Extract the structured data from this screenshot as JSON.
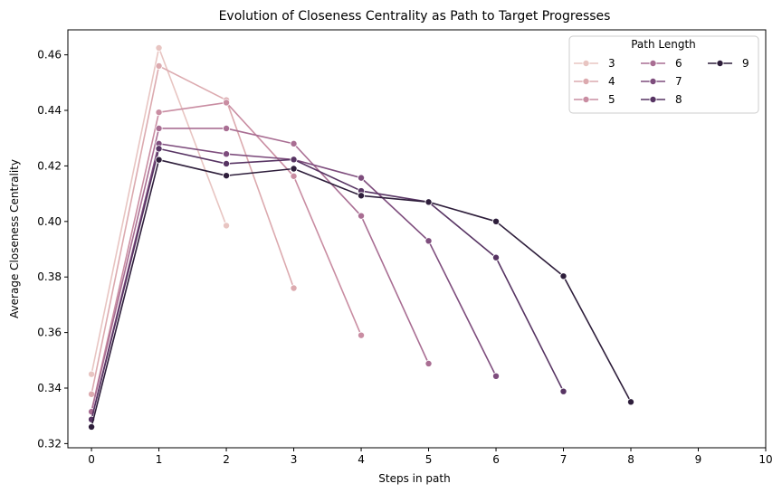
{
  "chart_data": {
    "type": "line",
    "title": "Evolution of Closeness Centrality as Path to Target Progresses",
    "xlabel": "Steps in path",
    "ylabel": "Average Closeness Centrality",
    "xlim": [
      -0.35,
      10
    ],
    "ylim": [
      0.3185,
      0.469
    ],
    "xticks": [
      0,
      1,
      2,
      3,
      4,
      5,
      6,
      7,
      8,
      9,
      10
    ],
    "yticks": [
      0.32,
      0.34,
      0.36,
      0.38,
      0.4,
      0.42,
      0.44,
      0.46
    ],
    "ytick_labels": [
      "0.32",
      "0.34",
      "0.36",
      "0.38",
      "0.40",
      "0.42",
      "0.44",
      "0.46"
    ],
    "grid": false,
    "legend": {
      "title": "Path Length",
      "placement": "top-right",
      "columns": 3
    },
    "series": [
      {
        "name": "3",
        "color": "#e8c5c2",
        "x": [
          0,
          1,
          2
        ],
        "values": [
          0.345,
          0.4625,
          0.3985
        ]
      },
      {
        "name": "4",
        "color": "#dcaaaf",
        "x": [
          0,
          1,
          2,
          3
        ],
        "values": [
          0.3378,
          0.456,
          0.4437,
          0.376
        ]
      },
      {
        "name": "5",
        "color": "#c98da2",
        "x": [
          0,
          1,
          2,
          3,
          4
        ],
        "values": [
          0.3317,
          0.4393,
          0.4428,
          0.4163,
          0.359
        ]
      },
      {
        "name": "6",
        "color": "#a96e93",
        "x": [
          0,
          1,
          2,
          3,
          4,
          5
        ],
        "values": [
          0.3315,
          0.4335,
          0.4335,
          0.428,
          0.402,
          0.3488
        ]
      },
      {
        "name": "7",
        "color": "#7e4d7d",
        "x": [
          0,
          1,
          2,
          3,
          4,
          5,
          6
        ],
        "values": [
          0.3288,
          0.428,
          0.4243,
          0.4223,
          0.4157,
          0.393,
          0.3443
        ]
      },
      {
        "name": "8",
        "color": "#573463",
        "x": [
          0,
          1,
          2,
          3,
          4,
          5,
          6,
          7
        ],
        "values": [
          0.3287,
          0.4262,
          0.4208,
          0.4223,
          0.411,
          0.407,
          0.387,
          0.3388
        ]
      },
      {
        "name": "9",
        "color": "#2e1e3b",
        "x": [
          0,
          1,
          2,
          3,
          4,
          5,
          6,
          7,
          8
        ],
        "values": [
          0.326,
          0.4222,
          0.4165,
          0.419,
          0.4093,
          0.407,
          0.4,
          0.3803,
          0.335
        ]
      }
    ]
  }
}
